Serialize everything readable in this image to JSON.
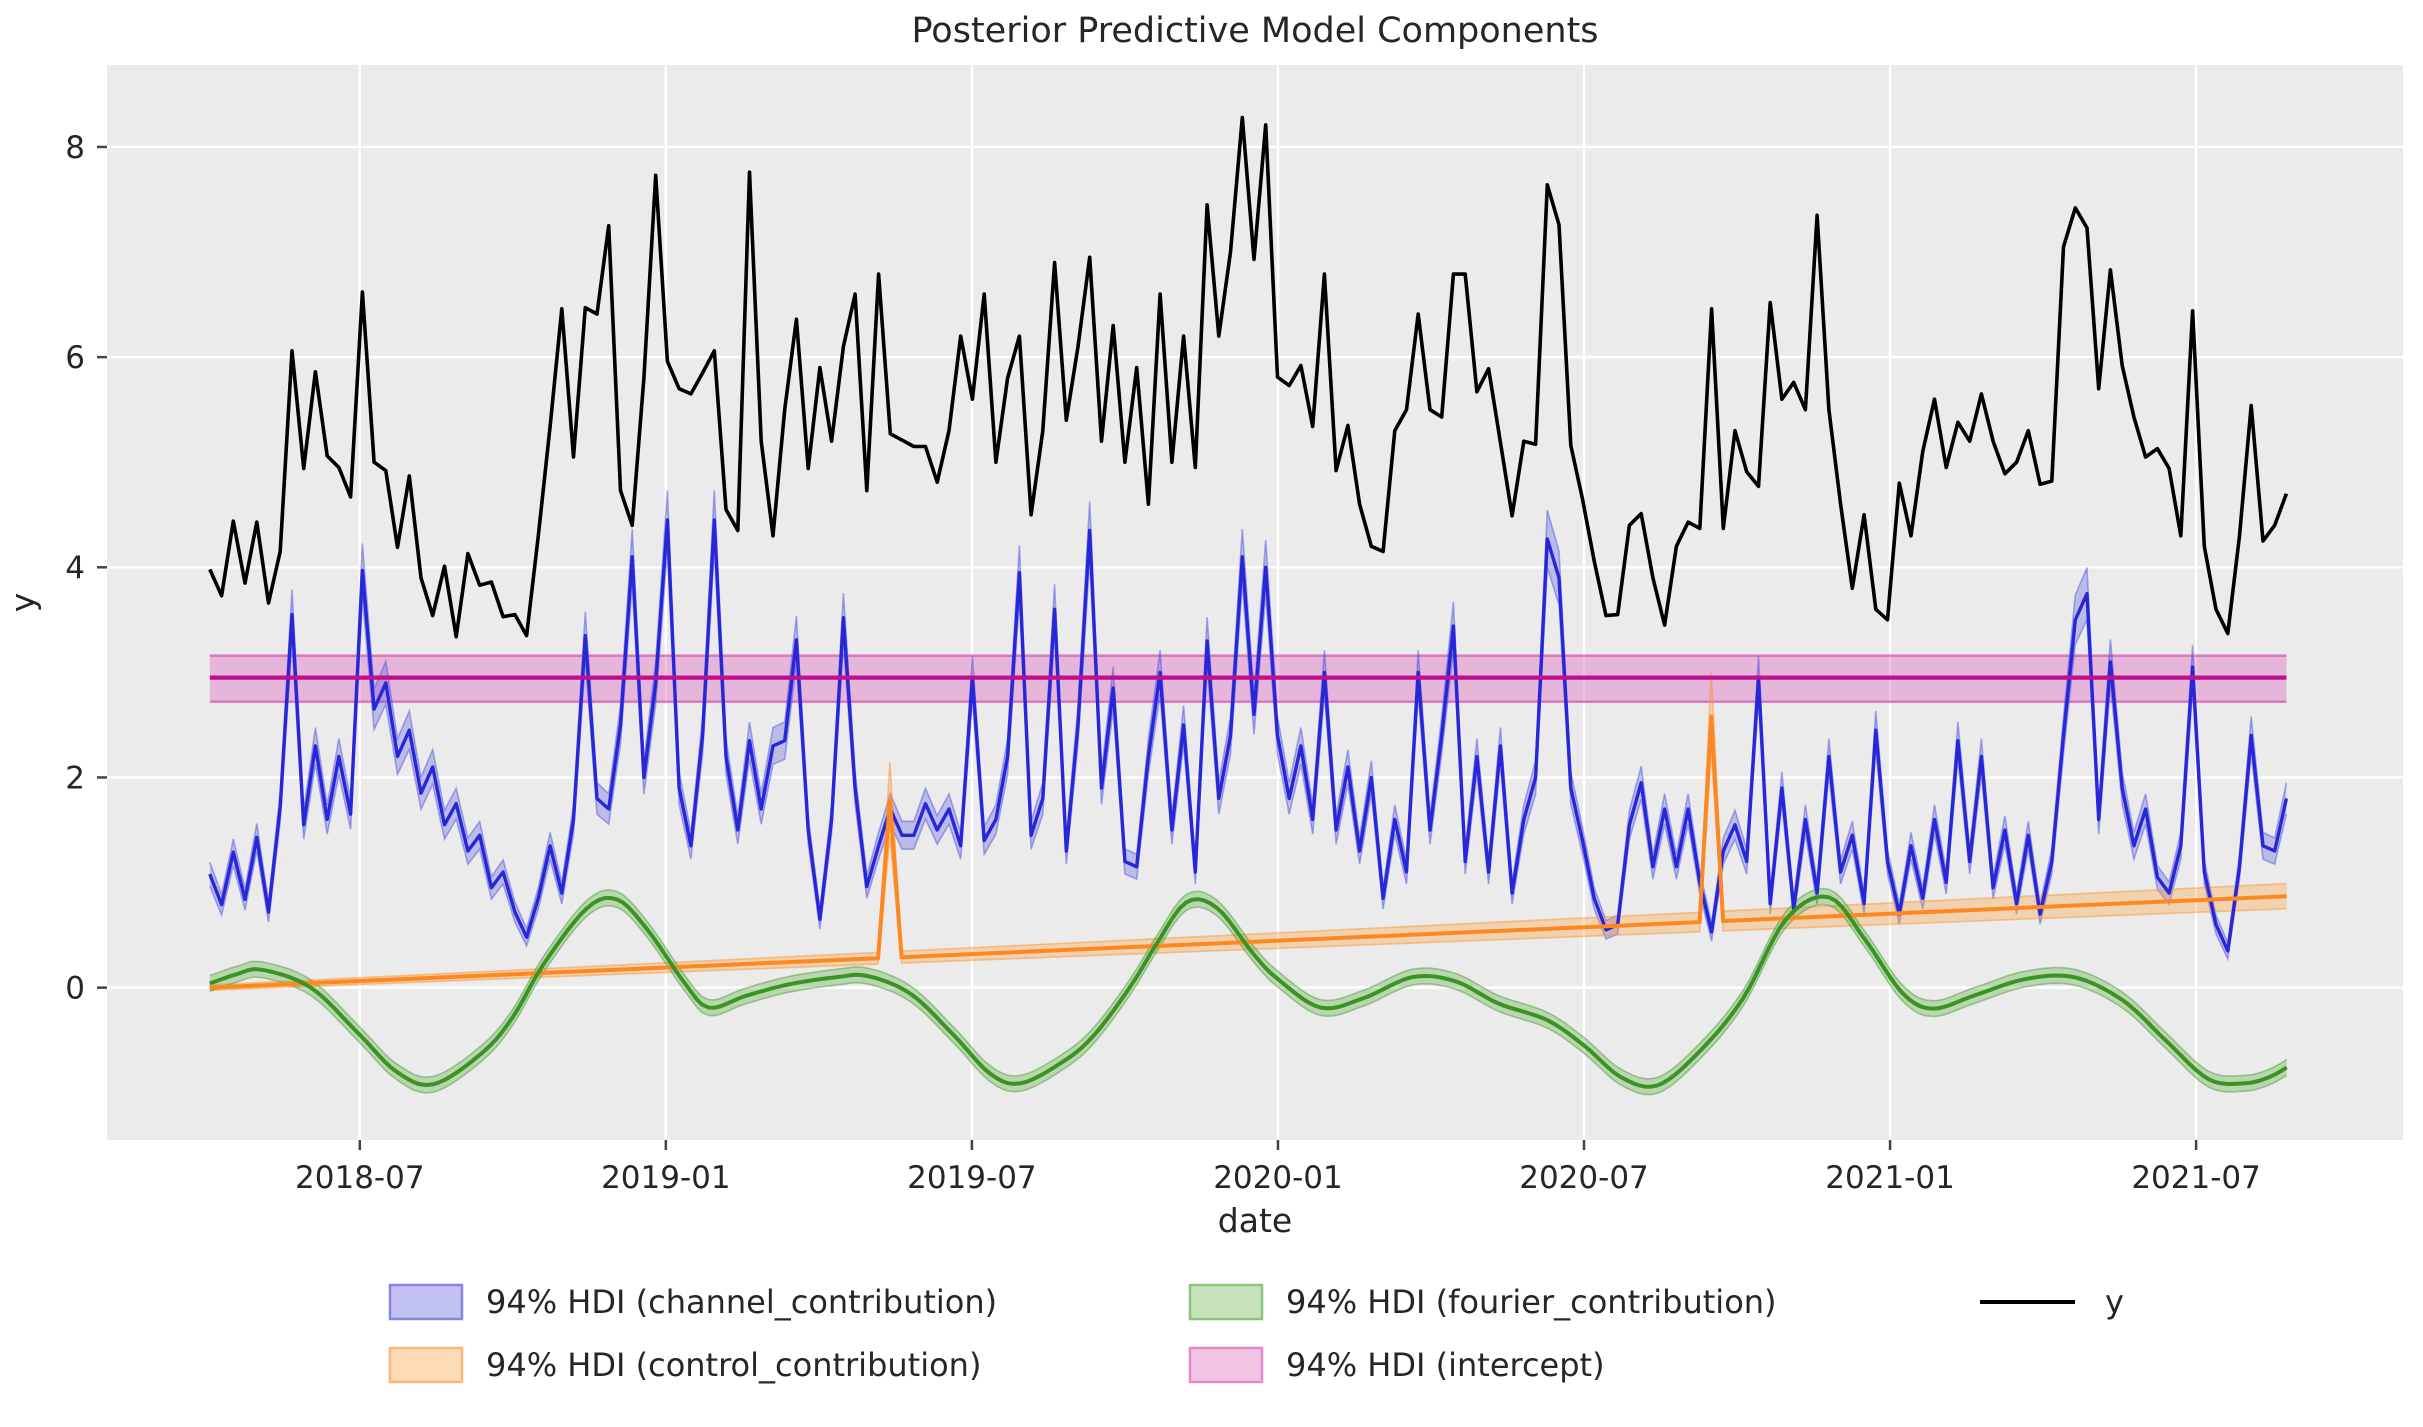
{
  "chart_data": {
    "type": "line",
    "title": "Posterior Predictive Model Components",
    "xlabel": "date",
    "ylabel": "y",
    "xlim": [
      2018.087,
      2021.838
    ],
    "ylim": [
      -1.45,
      8.78
    ],
    "grid": true,
    "legend_position": "below",
    "x_ticks": [
      {
        "t": 2018.5,
        "label": "2018-07"
      },
      {
        "t": 2019.0,
        "label": "2019-01"
      },
      {
        "t": 2019.5,
        "label": "2019-07"
      },
      {
        "t": 2020.0,
        "label": "2020-01"
      },
      {
        "t": 2020.5,
        "label": "2020-07"
      },
      {
        "t": 2021.0,
        "label": "2021-01"
      },
      {
        "t": 2021.5,
        "label": "2021-07"
      }
    ],
    "y_ticks": [
      {
        "v": 0,
        "label": "0"
      },
      {
        "v": 2,
        "label": "2"
      },
      {
        "v": 4,
        "label": "4"
      },
      {
        "v": 6,
        "label": "6"
      },
      {
        "v": 8,
        "label": "8"
      }
    ],
    "x_start": 2018.255,
    "x_step": 0.019167,
    "y_series": {
      "name": "y",
      "color": "#000000",
      "values": [
        3.98,
        3.73,
        4.44,
        3.85,
        4.43,
        3.66,
        4.15,
        6.06,
        4.94,
        5.86,
        5.06,
        4.95,
        4.67,
        6.62,
        5.0,
        4.92,
        4.19,
        4.87,
        3.9,
        3.54,
        4.01,
        3.34,
        4.13,
        3.83,
        3.86,
        3.53,
        3.55,
        3.35,
        4.3,
        5.34,
        6.46,
        5.05,
        6.47,
        6.41,
        7.25,
        4.73,
        4.4,
        5.8,
        7.73,
        5.96,
        5.7,
        5.65,
        5.85,
        6.06,
        4.55,
        4.35,
        7.76,
        5.2,
        4.3,
        5.5,
        6.36,
        4.94,
        5.9,
        5.2,
        6.1,
        6.6,
        4.73,
        6.79,
        5.27,
        5.21,
        5.15,
        5.15,
        4.81,
        5.3,
        6.2,
        5.6,
        6.6,
        5.0,
        5.8,
        6.2,
        4.5,
        5.3,
        6.9,
        5.4,
        6.1,
        6.95,
        5.2,
        6.3,
        5.0,
        5.9,
        4.6,
        6.6,
        5.0,
        6.2,
        4.95,
        7.45,
        6.2,
        7.0,
        8.28,
        6.93,
        8.21,
        5.81,
        5.73,
        5.92,
        5.34,
        6.79,
        4.92,
        5.35,
        4.6,
        4.2,
        4.15,
        5.3,
        5.5,
        6.41,
        5.5,
        5.43,
        6.79,
        6.79,
        5.67,
        5.89,
        5.19,
        4.49,
        5.2,
        5.17,
        7.64,
        7.26,
        5.16,
        4.65,
        4.06,
        3.54,
        3.55,
        4.4,
        4.51,
        3.9,
        3.45,
        4.2,
        4.43,
        4.37,
        6.46,
        4.37,
        5.3,
        4.91,
        4.77,
        6.52,
        5.6,
        5.76,
        5.5,
        7.35,
        5.5,
        4.6,
        3.8,
        4.5,
        3.6,
        3.5,
        4.8,
        4.3,
        5.1,
        5.6,
        4.95,
        5.38,
        5.2,
        5.65,
        5.2,
        4.89,
        5.0,
        5.3,
        4.79,
        4.82,
        7.05,
        7.42,
        7.23,
        5.7,
        6.83,
        5.92,
        5.43,
        5.05,
        5.13,
        4.94,
        4.3,
        6.44,
        4.2,
        3.6,
        3.37,
        4.3,
        5.54,
        4.25,
        4.4,
        4.7
      ]
    },
    "channel_contribution": {
      "name": "94% HDI (channel_contribution)",
      "line_color": "#2727d8",
      "band_fill": "rgba(75,75,225,0.30)",
      "band_edge": "rgba(75,75,225,0.45)",
      "band_halfwidth_base": 0.06,
      "band_halfwidth_slope": 0.05,
      "values": [
        1.08,
        0.79,
        1.29,
        0.84,
        1.43,
        0.72,
        1.72,
        3.55,
        1.55,
        2.3,
        1.6,
        2.2,
        1.65,
        3.97,
        2.65,
        2.9,
        2.2,
        2.45,
        1.85,
        2.1,
        1.55,
        1.75,
        1.3,
        1.45,
        0.95,
        1.1,
        0.72,
        0.48,
        0.85,
        1.35,
        0.9,
        1.6,
        3.35,
        1.8,
        1.7,
        2.5,
        4.1,
        2.0,
        2.9,
        4.45,
        1.9,
        1.35,
        2.4,
        4.45,
        2.2,
        1.5,
        2.35,
        1.7,
        2.3,
        2.35,
        3.31,
        1.5,
        0.65,
        1.6,
        3.52,
        1.9,
        0.96,
        1.35,
        1.7,
        1.45,
        1.45,
        1.75,
        1.5,
        1.7,
        1.35,
        2.95,
        1.4,
        1.6,
        2.2,
        3.95,
        1.45,
        1.8,
        3.6,
        1.3,
        2.5,
        4.35,
        1.9,
        2.85,
        1.2,
        1.15,
        2.2,
        3.0,
        1.5,
        2.5,
        1.1,
        3.3,
        1.8,
        2.4,
        4.1,
        2.6,
        4.0,
        2.4,
        1.8,
        2.3,
        1.6,
        3.0,
        1.5,
        2.1,
        1.3,
        2.0,
        0.85,
        1.6,
        1.1,
        3.0,
        1.5,
        2.4,
        3.44,
        1.2,
        2.2,
        1.1,
        2.3,
        0.9,
        1.6,
        2.0,
        4.27,
        3.9,
        1.9,
        1.4,
        0.85,
        0.55,
        0.6,
        1.55,
        1.95,
        1.15,
        1.7,
        1.15,
        1.7,
        1.0,
        0.53,
        1.3,
        1.55,
        1.2,
        2.95,
        0.8,
        1.9,
        0.75,
        1.6,
        0.9,
        2.2,
        1.1,
        1.45,
        0.8,
        2.45,
        1.2,
        0.7,
        1.35,
        0.85,
        1.6,
        1.0,
        2.35,
        1.2,
        2.2,
        0.95,
        1.5,
        0.8,
        1.45,
        0.7,
        1.2,
        2.4,
        3.5,
        3.75,
        1.6,
        3.1,
        1.9,
        1.35,
        1.7,
        1.05,
        0.9,
        1.35,
        3.05,
        1.1,
        0.6,
        0.35,
        1.15,
        2.4,
        1.35,
        1.3,
        1.8
      ]
    },
    "control_contribution": {
      "name": "94% HDI (control_contribution)",
      "line_color": "#fd8821",
      "band_fill": "rgba(253,160,60,0.35)",
      "band_edge": "rgba(250,150,55,0.5)",
      "baseline_start": {
        "t": 2018.255,
        "v": 0.0
      },
      "baseline_end": {
        "t": 2021.648,
        "v": 0.87
      },
      "band_halfwidth_start": 0.025,
      "band_halfwidth_end": 0.12,
      "spikes": [
        {
          "t": 2019.366,
          "v": 1.78,
          "band_v": 2.15
        },
        {
          "t": 2020.708,
          "v": 2.58,
          "band_v": 3.0
        }
      ]
    },
    "fourier_contribution": {
      "name": "94% HDI (fourier_contribution)",
      "line_color": "#3b9323",
      "band_fill": "rgba(95,175,70,0.35)",
      "band_edge": "rgba(80,160,60,0.5)",
      "band_halfwidth": 0.075,
      "knots": [
        [
          2018.255,
          0.04
        ],
        [
          2018.3,
          0.13
        ],
        [
          2018.34,
          0.17
        ],
        [
          2018.42,
          0.0
        ],
        [
          2018.5,
          -0.45
        ],
        [
          2018.56,
          -0.8
        ],
        [
          2018.62,
          -0.92
        ],
        [
          2018.7,
          -0.62
        ],
        [
          2018.75,
          -0.28
        ],
        [
          2018.8,
          0.22
        ],
        [
          2018.87,
          0.75
        ],
        [
          2018.92,
          0.84
        ],
        [
          2018.97,
          0.55
        ],
        [
          2019.03,
          0.05
        ],
        [
          2019.07,
          -0.19
        ],
        [
          2019.13,
          -0.08
        ],
        [
          2019.2,
          0.03
        ],
        [
          2019.28,
          0.1
        ],
        [
          2019.33,
          0.11
        ],
        [
          2019.4,
          -0.06
        ],
        [
          2019.47,
          -0.45
        ],
        [
          2019.53,
          -0.82
        ],
        [
          2019.58,
          -0.91
        ],
        [
          2019.65,
          -0.7
        ],
        [
          2019.7,
          -0.45
        ],
        [
          2019.76,
          0.02
        ],
        [
          2019.8,
          0.4
        ],
        [
          2019.85,
          0.81
        ],
        [
          2019.9,
          0.76
        ],
        [
          2019.96,
          0.32
        ],
        [
          2020.0,
          0.08
        ],
        [
          2020.07,
          -0.19
        ],
        [
          2020.14,
          -0.1
        ],
        [
          2020.22,
          0.1
        ],
        [
          2020.29,
          0.06
        ],
        [
          2020.36,
          -0.15
        ],
        [
          2020.44,
          -0.31
        ],
        [
          2020.5,
          -0.55
        ],
        [
          2020.56,
          -0.85
        ],
        [
          2020.62,
          -0.93
        ],
        [
          2020.69,
          -0.6
        ],
        [
          2020.76,
          -0.1
        ],
        [
          2020.83,
          0.65
        ],
        [
          2020.9,
          0.86
        ],
        [
          2020.96,
          0.45
        ],
        [
          2021.02,
          -0.05
        ],
        [
          2021.07,
          -0.2
        ],
        [
          2021.14,
          -0.07
        ],
        [
          2021.22,
          0.08
        ],
        [
          2021.3,
          0.1
        ],
        [
          2021.38,
          -0.12
        ],
        [
          2021.45,
          -0.5
        ],
        [
          2021.52,
          -0.87
        ],
        [
          2021.58,
          -0.91
        ],
        [
          2021.62,
          -0.85
        ],
        [
          2021.648,
          -0.76
        ]
      ]
    },
    "intercept": {
      "name": "94% HDI (intercept)",
      "line_color": "#bf0e8e",
      "band_fill": "rgba(225,110,195,0.42)",
      "band_edge": "rgba(210,75,170,0.65)",
      "mean": 2.95,
      "hdi": [
        2.72,
        3.16
      ]
    },
    "legend": [
      {
        "kind": "patch",
        "fill": "#c0c0f1",
        "border": "#8585dd",
        "label": "94% HDI (channel_contribution)"
      },
      {
        "kind": "patch",
        "fill": "#fddcb8",
        "border": "#f9b77c",
        "label": "94% HDI (control_contribution)"
      },
      {
        "kind": "patch",
        "fill": "#c7e3bb",
        "border": "#8bc47c",
        "label": "94% HDI (fourier_contribution)"
      },
      {
        "kind": "patch",
        "fill": "#f2c4e4",
        "border": "#e288cb",
        "label": "94% HDI (intercept)"
      },
      {
        "kind": "line",
        "stroke": "#000000",
        "label": "y"
      }
    ],
    "style": {
      "plot_bg": "#ebebeb",
      "grid_color": "#ffffff",
      "text_color": "#262626",
      "tick_color": "#444444"
    }
  }
}
